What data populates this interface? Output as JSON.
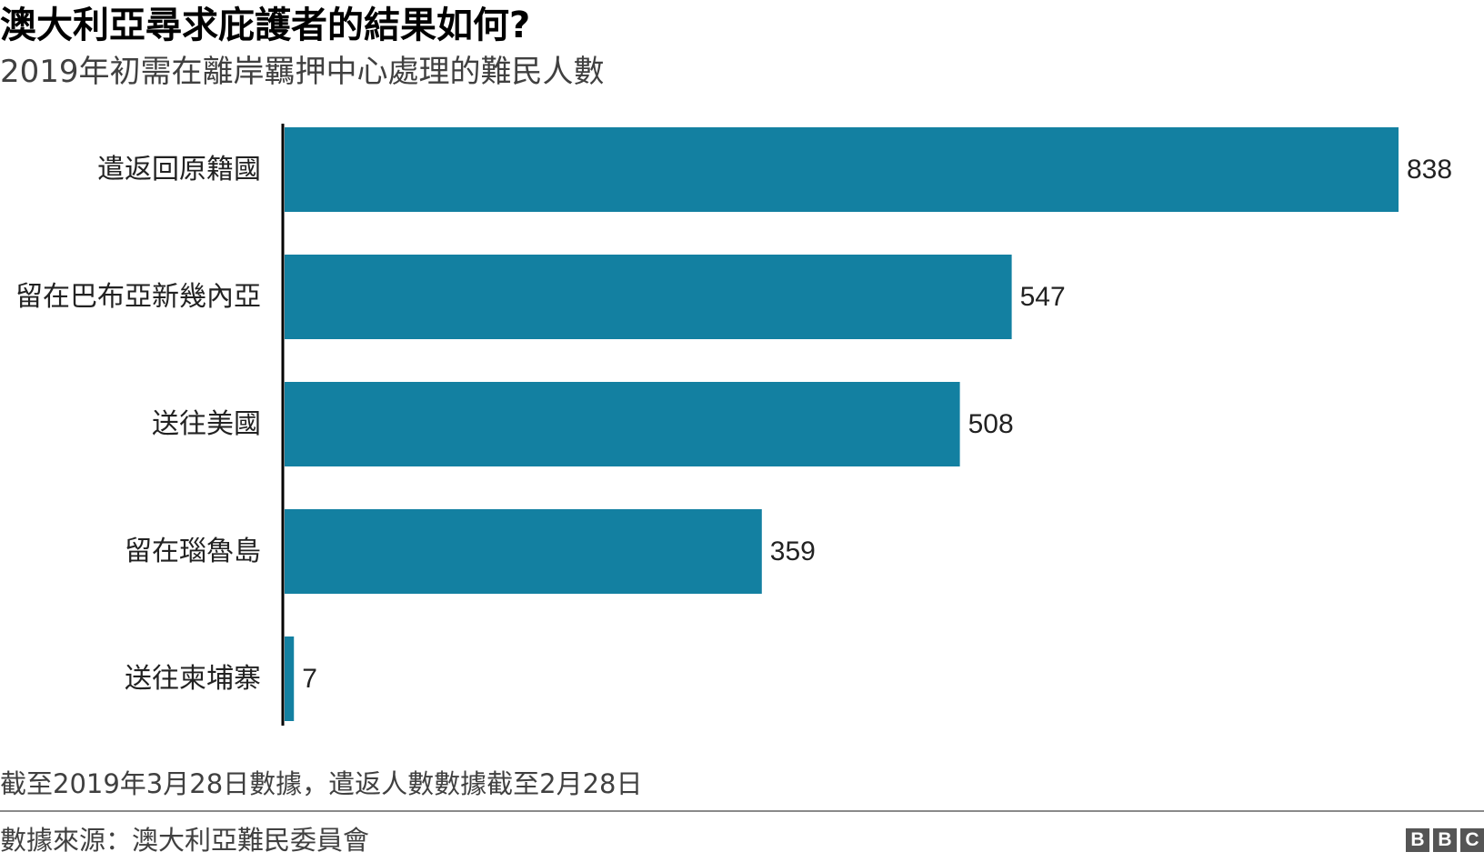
{
  "title": "澳大利亞尋求庇護者的結果如何?",
  "subtitle": "2019年初需在離岸羈押中心處理的難民人數",
  "note": "截至2019年3月28日數據，遣返人數數據截至2月28日",
  "source": "數據來源：澳大利亞難民委員會",
  "logo": {
    "letters": [
      "B",
      "B",
      "C"
    ]
  },
  "colors": {
    "bar": "#1380a1",
    "axis": "#000000",
    "text": "#222222"
  },
  "chart_data": {
    "type": "bar",
    "orientation": "horizontal",
    "categories": [
      "遣返回原籍國",
      "留在巴布亞新幾內亞",
      "送往美國",
      "留在瑙魯島",
      "送往柬埔寨"
    ],
    "values": [
      838,
      547,
      508,
      359,
      7
    ],
    "value_labels": [
      "838",
      "547",
      "508",
      "359",
      "7"
    ],
    "xlim": [
      0,
      838
    ],
    "grid": false,
    "legend": "none"
  }
}
